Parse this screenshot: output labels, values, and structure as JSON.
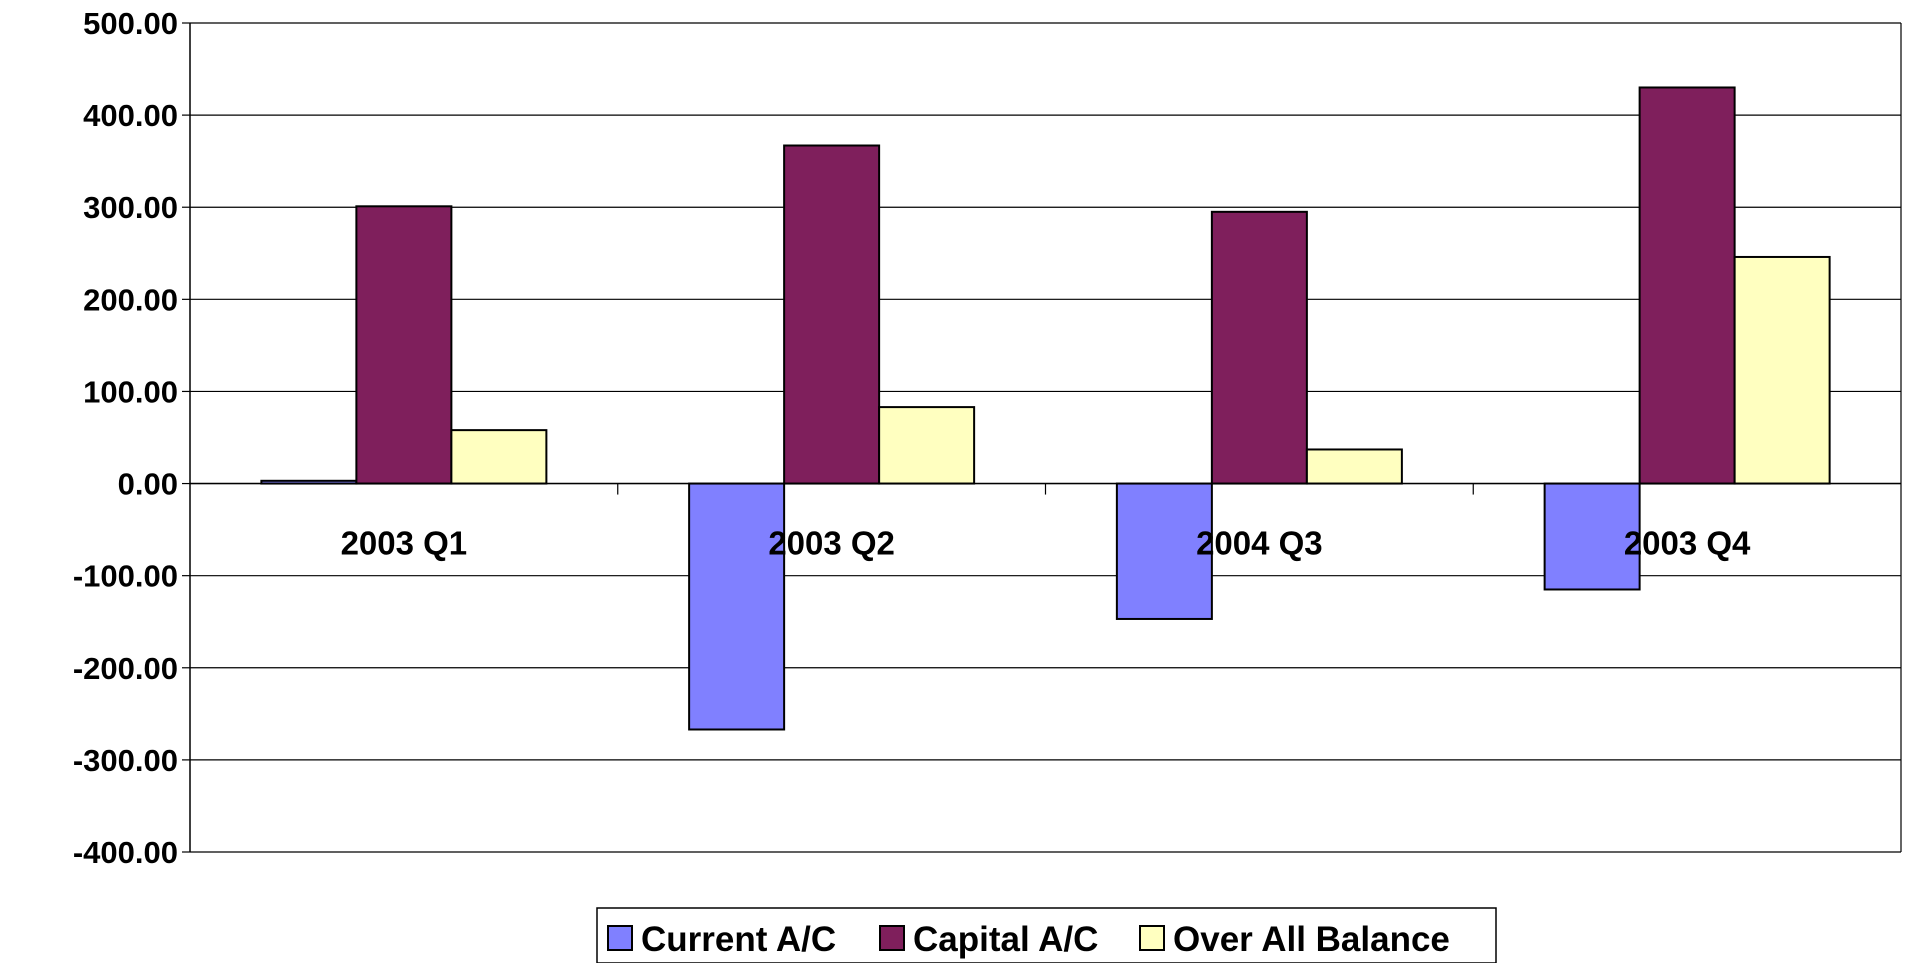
{
  "chart_data": {
    "type": "bar",
    "title": "",
    "xlabel": "",
    "ylabel": "",
    "categories": [
      "2003 Q1",
      "2003 Q2",
      "2004 Q3",
      "2003 Q4"
    ],
    "series": [
      {
        "name": "Current A/C",
        "color": "#8080FF",
        "values": [
          3,
          -267,
          -147,
          -115
        ]
      },
      {
        "name": "Capital A/C",
        "color": "#7F1F5C",
        "values": [
          301,
          367,
          295,
          430
        ]
      },
      {
        "name": "Over All Balance",
        "color": "#FFFFC0",
        "values": [
          58,
          83,
          37,
          246
        ]
      }
    ],
    "ylim": [
      -400,
      500
    ],
    "yticks": [
      "500.00",
      "400.00",
      "300.00",
      "200.00",
      "100.00",
      "0.00",
      "-100.00",
      "-200.00",
      "-300.00",
      "-400.00"
    ],
    "ytick_values": [
      500,
      400,
      300,
      200,
      100,
      0,
      -100,
      -200,
      -300,
      -400
    ],
    "grid": true,
    "legend_position": "bottom"
  }
}
